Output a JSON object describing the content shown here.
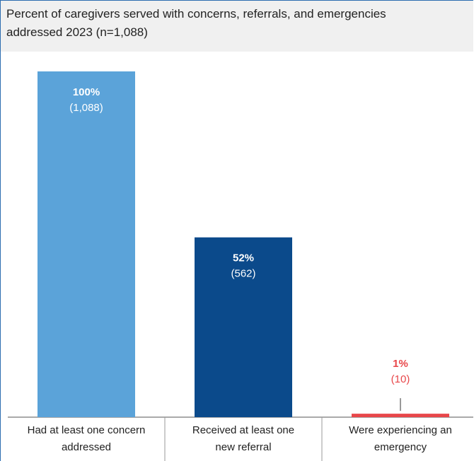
{
  "chart_data": {
    "type": "bar",
    "title": "Percent of caregivers served with concerns, referrals, and emergencies addressed 2023 (n=1,088)",
    "categories": [
      [
        "Had at least one concern",
        "addressed"
      ],
      [
        "Received at least one",
        "new referral"
      ],
      [
        "Were experiencing an",
        "emergency"
      ]
    ],
    "values": [
      100,
      52,
      1
    ],
    "value_labels": [
      "100%",
      "52%",
      "1%"
    ],
    "count_labels": [
      "(1,088)",
      "(562)",
      "(10)"
    ],
    "colors": [
      "#5ba3d9",
      "#0b4a8b",
      "#e8474a"
    ]
  }
}
